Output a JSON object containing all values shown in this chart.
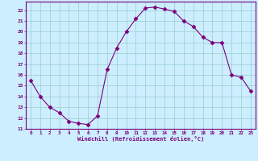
{
  "x": [
    0,
    1,
    2,
    3,
    4,
    5,
    6,
    7,
    8,
    9,
    10,
    11,
    12,
    13,
    14,
    15,
    16,
    17,
    18,
    19,
    20,
    21,
    22,
    23
  ],
  "y": [
    15.5,
    14.0,
    13.0,
    12.5,
    11.7,
    11.5,
    11.4,
    12.2,
    16.5,
    18.5,
    20.0,
    21.2,
    22.2,
    22.3,
    22.1,
    21.9,
    21.0,
    20.5,
    19.5,
    19.0,
    19.0,
    16.0,
    15.8,
    14.5
  ],
  "line_color": "#7a007a",
  "marker": "D",
  "marker_size": 2.5,
  "bg_color": "#cceeff",
  "grid_color": "#99cccc",
  "axis_color": "#7a007a",
  "tick_color": "#7a007a",
  "xlabel": "Windchill (Refroidissement éolien,°C)",
  "xlabel_color": "#7a007a",
  "xlim": [
    -0.5,
    23.5
  ],
  "ylim": [
    11,
    22.8
  ],
  "yticks": [
    11,
    12,
    13,
    14,
    15,
    16,
    17,
    18,
    19,
    20,
    21,
    22
  ],
  "xticks": [
    0,
    1,
    2,
    3,
    4,
    5,
    6,
    7,
    8,
    9,
    10,
    11,
    12,
    13,
    14,
    15,
    16,
    17,
    18,
    19,
    20,
    21,
    22,
    23
  ]
}
